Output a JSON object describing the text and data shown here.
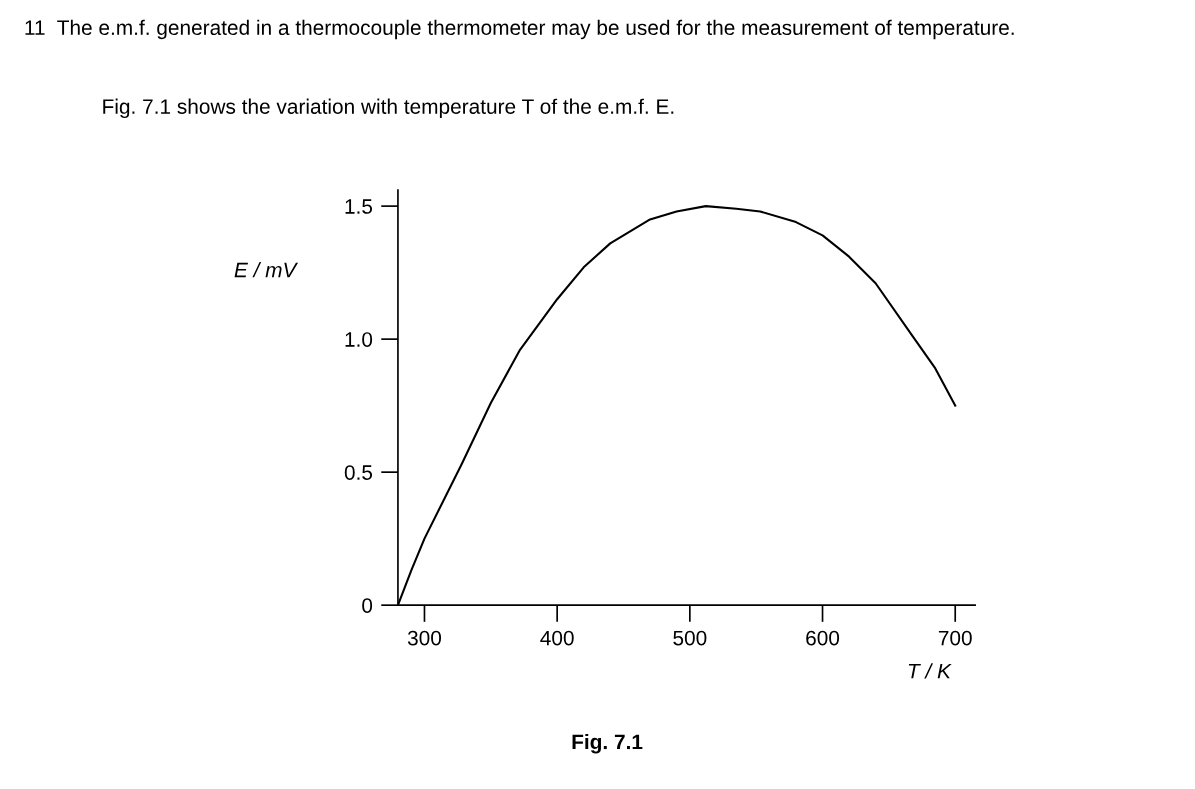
{
  "chart_data": {
    "type": "line",
    "title": "11  The e.m.f. generated in a thermocouple thermometer may be used for the measurement of temperature.",
    "subtitle": "Fig. 7.1 shows the variation with temperature T of the e.m.f. E.",
    "xlabel": "T / K",
    "ylabel": "E / mV",
    "annotations": [
      "Fig. 7.1"
    ],
    "series": [
      {
        "color": "#000000",
        "x": [
          280,
          290,
          300,
          315,
          328,
          350,
          372,
          400,
          420,
          440,
          470,
          490,
          512,
          535,
          553,
          580,
          600,
          620,
          640,
          668,
          685,
          700
        ],
        "values": [
          0,
          0.13,
          0.25,
          0.4,
          0.53,
          0.76,
          0.96,
          1.15,
          1.27,
          1.36,
          1.45,
          1.48,
          1.5,
          1.49,
          1.48,
          1.44,
          1.39,
          1.31,
          1.21,
          1.01,
          0.89,
          0.75
        ]
      }
    ],
    "xlim": [
      280,
      715
    ],
    "ylim": [
      0,
      1.56
    ],
    "xticks": [
      300,
      400,
      500,
      600,
      700
    ],
    "yticks": [
      {
        "value": 0,
        "label": "0"
      },
      {
        "value": 0.5,
        "label": "0.5"
      },
      {
        "value": 1.0,
        "label": "1.0"
      },
      {
        "value": 1.5,
        "label": "1.5"
      }
    ],
    "grid": false,
    "legend": false,
    "marker": "none",
    "line_style": "solid"
  }
}
